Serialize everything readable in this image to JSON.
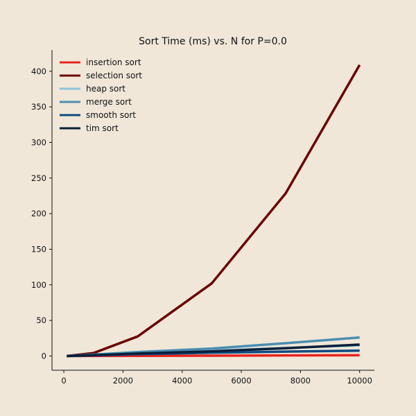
{
  "chart_data": {
    "type": "line",
    "title": "Sort Time (ms) vs. N for P=0.0",
    "xlabel": "",
    "ylabel": "",
    "xlim": [
      -400,
      10500
    ],
    "ylim": [
      -20,
      430
    ],
    "xticks": [
      0,
      2000,
      4000,
      6000,
      8000,
      10000
    ],
    "yticks": [
      0,
      50,
      100,
      150,
      200,
      250,
      300,
      350,
      400
    ],
    "grid": false,
    "legend_position": "top-left",
    "x": [
      100,
      1000,
      2500,
      5000,
      7500,
      10000
    ],
    "series": [
      {
        "name": "insertion sort",
        "color": "#e8231d",
        "values": [
          0.0,
          0.1,
          0.3,
          0.5,
          0.8,
          1.0
        ]
      },
      {
        "name": "selection sort",
        "color": "#6b0000",
        "values": [
          0.0,
          4.1,
          27.5,
          102.0,
          228.5,
          409.0
        ]
      },
      {
        "name": "heap sort",
        "color": "#8fc2de",
        "values": [
          0.0,
          1.4,
          4.0,
          7.5,
          11.5,
          15.0
        ]
      },
      {
        "name": "merge sort",
        "color": "#4a8db0",
        "values": [
          0.0,
          2.0,
          5.5,
          10.5,
          18.0,
          26.0
        ]
      },
      {
        "name": "smooth sort",
        "color": "#0d4c82",
        "values": [
          0.0,
          0.8,
          2.5,
          4.5,
          6.2,
          7.6
        ]
      },
      {
        "name": "tim sort",
        "color": "#0a1f3a",
        "values": [
          0.0,
          1.2,
          3.5,
          6.5,
          11.0,
          16.0
        ]
      }
    ]
  }
}
